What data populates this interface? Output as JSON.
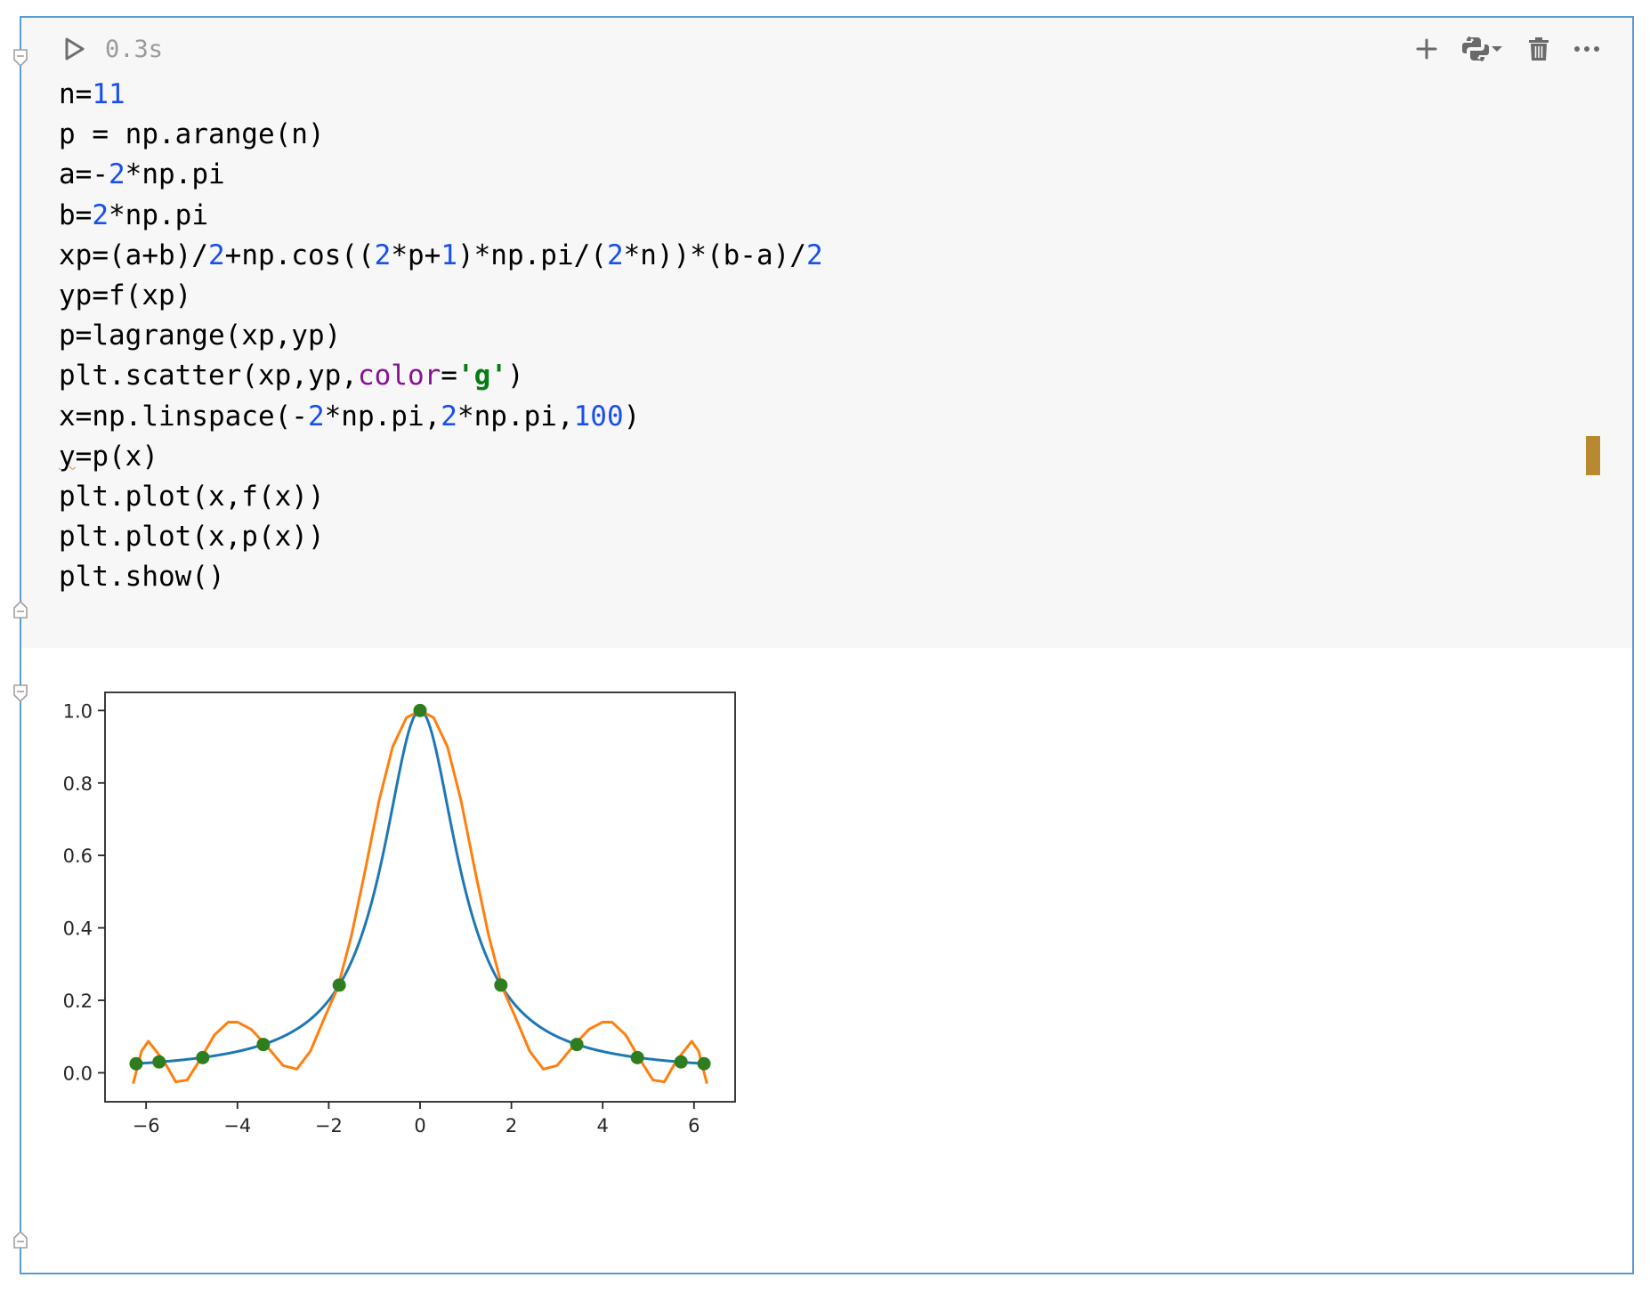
{
  "cell": {
    "exec_time": "0.3s",
    "toolbar": {
      "add_icon": "plus-icon",
      "kernel_icon": "python-icon",
      "delete_icon": "trash-icon",
      "more_icon": "more-icon"
    },
    "code_lines": [
      "n=11",
      "p = np.arange(n)",
      "a=-2*np.pi",
      "b=2*np.pi",
      "xp=(a+b)/2+np.cos((2*p+1)*np.pi/(2*n))*(b-a)/2",
      "yp=f(xp)",
      "p=lagrange(xp,yp)",
      "plt.scatter(xp,yp,color='g')",
      "x=np.linspace(-2*np.pi,2*np.pi,100)",
      "y=p(x)",
      "plt.plot(x,f(x))",
      "plt.plot(x,p(x))",
      "plt.show()"
    ],
    "colors": {
      "number": "#1750eb",
      "keyword_arg": "#871094",
      "string": "#067d17",
      "border": "#5b9bd5",
      "marker": "#b8892f"
    }
  },
  "chart_data": {
    "type": "line",
    "title": "",
    "xlabel": "",
    "ylabel": "",
    "xlim": [
      -6.9,
      6.9
    ],
    "ylim": [
      -0.08,
      1.05
    ],
    "x_ticks": [
      -6,
      -4,
      -2,
      0,
      2,
      4,
      6
    ],
    "y_ticks": [
      0.0,
      0.2,
      0.4,
      0.6,
      0.8,
      1.0
    ],
    "x_tick_labels": [
      "−6",
      "−4",
      "−2",
      "0",
      "2",
      "4",
      "6"
    ],
    "y_tick_labels": [
      "0.0",
      "0.2",
      "0.4",
      "0.6",
      "0.8",
      "1.0"
    ],
    "grid": false,
    "series": [
      {
        "kind": "line",
        "color": "#1f77b4",
        "function": "runge",
        "x": [
          -6.283,
          -5.5,
          -4.8,
          -4.0,
          -3.4,
          -2.8,
          -2.2,
          -1.8,
          -1.4,
          -1.0,
          -0.6,
          -0.3,
          0.0,
          0.3,
          0.6,
          1.0,
          1.4,
          1.8,
          2.2,
          2.8,
          3.4,
          4.0,
          4.8,
          5.5,
          6.283
        ],
        "y": [
          0.025,
          0.032,
          0.042,
          0.059,
          0.08,
          0.113,
          0.171,
          0.236,
          0.338,
          0.5,
          0.735,
          0.917,
          1.0,
          0.917,
          0.735,
          0.5,
          0.338,
          0.236,
          0.171,
          0.113,
          0.08,
          0.059,
          0.042,
          0.032,
          0.025
        ]
      },
      {
        "kind": "line",
        "color": "#ff7f0e",
        "function": "interpolant",
        "x": [
          -6.283,
          -6.1,
          -5.95,
          -5.78,
          -5.6,
          -5.35,
          -5.1,
          -4.8,
          -4.5,
          -4.2,
          -4.0,
          -3.7,
          -3.4,
          -3.0,
          -2.7,
          -2.4,
          -2.1,
          -1.8,
          -1.5,
          -1.2,
          -0.9,
          -0.6,
          -0.3,
          0.0,
          0.3,
          0.6,
          0.9,
          1.2,
          1.5,
          1.8,
          2.1,
          2.4,
          2.7,
          3.0,
          3.4,
          3.7,
          4.0,
          4.2,
          4.5,
          4.8,
          5.1,
          5.35,
          5.6,
          5.78,
          5.95,
          6.1,
          6.283
        ],
        "y": [
          -0.03,
          0.06,
          0.087,
          0.06,
          0.03,
          -0.025,
          -0.02,
          0.04,
          0.105,
          0.14,
          0.14,
          0.12,
          0.08,
          0.02,
          0.01,
          0.06,
          0.15,
          0.236,
          0.38,
          0.56,
          0.75,
          0.9,
          0.98,
          1.0,
          0.98,
          0.9,
          0.75,
          0.56,
          0.38,
          0.236,
          0.15,
          0.06,
          0.01,
          0.02,
          0.08,
          0.12,
          0.14,
          0.14,
          0.105,
          0.04,
          -0.02,
          -0.025,
          0.03,
          0.06,
          0.087,
          0.06,
          -0.03
        ]
      },
      {
        "kind": "scatter",
        "color": "#2e7d1e",
        "x": [
          -6.219,
          -5.715,
          -4.759,
          -3.433,
          -1.77,
          0.0,
          1.77,
          3.433,
          4.759,
          5.715,
          6.219
        ],
        "y": [
          0.025,
          0.03,
          0.042,
          0.078,
          0.242,
          1.0,
          0.242,
          0.078,
          0.042,
          0.03,
          0.025
        ]
      }
    ]
  }
}
